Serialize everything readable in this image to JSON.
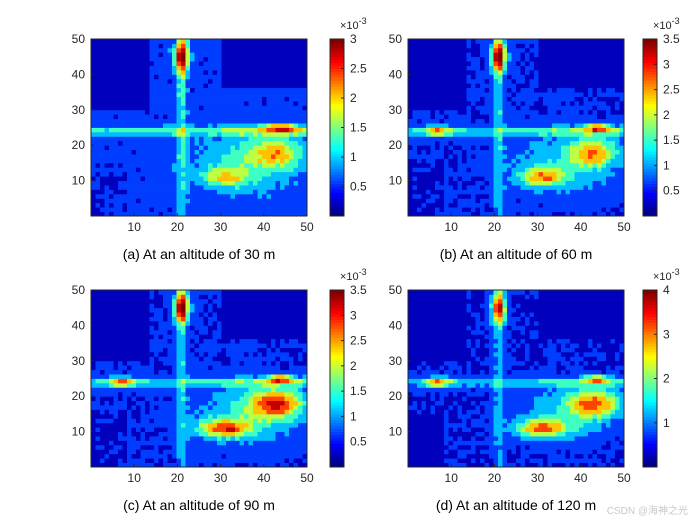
{
  "figure": {
    "watermark": "CSDN @海神之光"
  },
  "chart_data": [
    {
      "type": "heatmap",
      "caption": "(a)  At an altitude of 30 m",
      "x_ticks": [
        10,
        20,
        30,
        40,
        50
      ],
      "y_ticks": [
        10,
        20,
        30,
        40,
        50
      ],
      "xlim": [
        0,
        50
      ],
      "ylim": [
        0,
        50
      ],
      "colorbar": {
        "min": 0,
        "max": 3,
        "ticks": [
          "0.5",
          "1",
          "1.5",
          "2",
          "2.5",
          "3"
        ],
        "tick_values": [
          0.5,
          1,
          1.5,
          2,
          2.5,
          3
        ],
        "exponent": "×10",
        "exponent_power": "-3"
      },
      "hotspots": [
        {
          "x": 21,
          "y": 45,
          "peak": 3.0,
          "sx": 1.8,
          "sy": 4
        },
        {
          "x": 43,
          "y": 18,
          "peak": 2.2,
          "sx": 6,
          "sy": 4
        },
        {
          "x": 31,
          "y": 11,
          "peak": 2.1,
          "sx": 5,
          "sy": 2.5
        },
        {
          "x": 44,
          "y": 25,
          "peak": 2.6,
          "sx": 4,
          "sy": 1.2
        }
      ]
    },
    {
      "type": "heatmap",
      "caption": "(b)  At an altitude of 60 m",
      "x_ticks": [
        10,
        20,
        30,
        40,
        50
      ],
      "y_ticks": [
        10,
        20,
        30,
        40,
        50
      ],
      "xlim": [
        0,
        50
      ],
      "ylim": [
        0,
        50
      ],
      "colorbar": {
        "min": 0,
        "max": 3.5,
        "ticks": [
          "0.5",
          "1",
          "1.5",
          "2",
          "2.5",
          "3",
          "3.5"
        ],
        "tick_values": [
          0.5,
          1,
          1.5,
          2,
          2.5,
          3,
          3.5
        ],
        "exponent": "×10",
        "exponent_power": "-3"
      },
      "hotspots": [
        {
          "x": 21,
          "y": 45,
          "peak": 3.5,
          "sx": 1.8,
          "sy": 4
        },
        {
          "x": 43,
          "y": 18,
          "peak": 2.8,
          "sx": 5,
          "sy": 4
        },
        {
          "x": 31,
          "y": 11,
          "peak": 2.8,
          "sx": 5,
          "sy": 2.5
        },
        {
          "x": 7,
          "y": 24,
          "peak": 2.4,
          "sx": 3,
          "sy": 1.5
        },
        {
          "x": 44,
          "y": 25,
          "peak": 3.0,
          "sx": 3,
          "sy": 1
        }
      ]
    },
    {
      "type": "heatmap",
      "caption": "(c)  At an altitude of 90 m",
      "x_ticks": [
        10,
        20,
        30,
        40,
        50
      ],
      "y_ticks": [
        10,
        20,
        30,
        40,
        50
      ],
      "xlim": [
        0,
        50
      ],
      "ylim": [
        0,
        50
      ],
      "colorbar": {
        "min": 0,
        "max": 3.5,
        "ticks": [
          "0.5",
          "1",
          "1.5",
          "2",
          "2.5",
          "3",
          "3.5"
        ],
        "tick_values": [
          0.5,
          1,
          1.5,
          2,
          2.5,
          3,
          3.5
        ],
        "exponent": "×10",
        "exponent_power": "-3"
      },
      "hotspots": [
        {
          "x": 21,
          "y": 45,
          "peak": 3.5,
          "sx": 1.8,
          "sy": 4
        },
        {
          "x": 43,
          "y": 18,
          "peak": 3.4,
          "sx": 6,
          "sy": 4
        },
        {
          "x": 31,
          "y": 11,
          "peak": 3.2,
          "sx": 6,
          "sy": 2.5
        },
        {
          "x": 7,
          "y": 24,
          "peak": 2.6,
          "sx": 3,
          "sy": 1.5
        },
        {
          "x": 44,
          "y": 25,
          "peak": 3.0,
          "sx": 3,
          "sy": 1
        }
      ]
    },
    {
      "type": "heatmap",
      "caption": "(d)  At an altitude of 120 m",
      "x_ticks": [
        10,
        20,
        30,
        40,
        50
      ],
      "y_ticks": [
        10,
        20,
        30,
        40,
        50
      ],
      "xlim": [
        0,
        50
      ],
      "ylim": [
        0,
        50
      ],
      "colorbar": {
        "min": 0,
        "max": 4,
        "ticks": [
          "1",
          "2",
          "3",
          "4"
        ],
        "tick_values": [
          1,
          2,
          3,
          4
        ],
        "exponent": "×10",
        "exponent_power": "-3"
      },
      "hotspots": [
        {
          "x": 21,
          "y": 45,
          "peak": 3.6,
          "sx": 1.8,
          "sy": 4
        },
        {
          "x": 43,
          "y": 18,
          "peak": 3.4,
          "sx": 6,
          "sy": 4
        },
        {
          "x": 31,
          "y": 11,
          "peak": 3.3,
          "sx": 6,
          "sy": 2.5
        },
        {
          "x": 7,
          "y": 24,
          "peak": 2.8,
          "sx": 3,
          "sy": 1.5
        },
        {
          "x": 44,
          "y": 25,
          "peak": 3.0,
          "sx": 3,
          "sy": 1
        }
      ]
    }
  ]
}
